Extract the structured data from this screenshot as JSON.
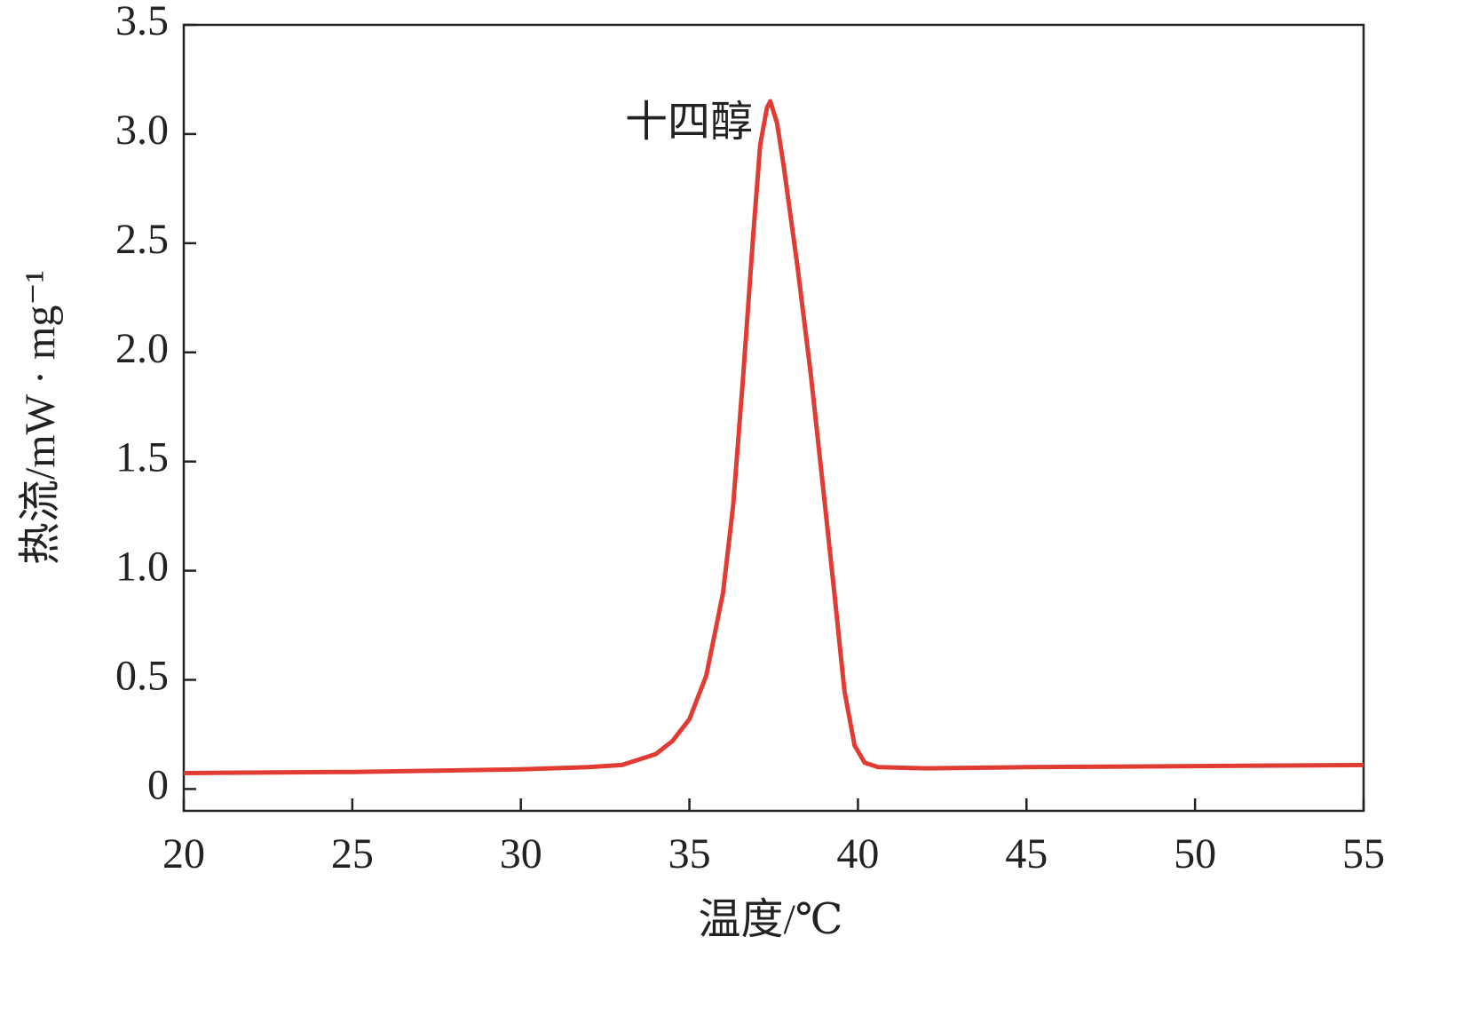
{
  "chart_data": {
    "type": "line",
    "xlabel": "温度/℃",
    "ylabel": "热流/mW · mg⁻¹",
    "annotation": "十四醇",
    "x": [
      20,
      25,
      30,
      32,
      33,
      34,
      34.5,
      35,
      35.5,
      36,
      36.3,
      36.6,
      36.9,
      37.1,
      37.3,
      37.4,
      37.6,
      37.8,
      38.2,
      38.6,
      39,
      39.3,
      39.6,
      39.9,
      40.2,
      40.6,
      42,
      45,
      50,
      55
    ],
    "series": [
      {
        "color": "#e03c34",
        "values": [
          0.073,
          0.078,
          0.09,
          0.1,
          0.11,
          0.16,
          0.22,
          0.32,
          0.52,
          0.9,
          1.3,
          1.9,
          2.55,
          2.95,
          3.12,
          3.15,
          3.05,
          2.85,
          2.4,
          1.9,
          1.33,
          0.9,
          0.45,
          0.2,
          0.12,
          0.1,
          0.095,
          0.1,
          0.105,
          0.11
        ]
      }
    ],
    "xlim": [
      20,
      55
    ],
    "xticks": [
      20,
      25,
      30,
      35,
      40,
      45,
      50,
      55
    ],
    "ylim": [
      -0.1,
      3.5
    ],
    "yticks": [
      0,
      0.5,
      {
        "value": 1,
        "label": "1.0"
      },
      1.5,
      {
        "value": 2,
        "label": "2.0"
      },
      2.5,
      {
        "value": 3,
        "label": "3.0"
      },
      3.5
    ]
  }
}
